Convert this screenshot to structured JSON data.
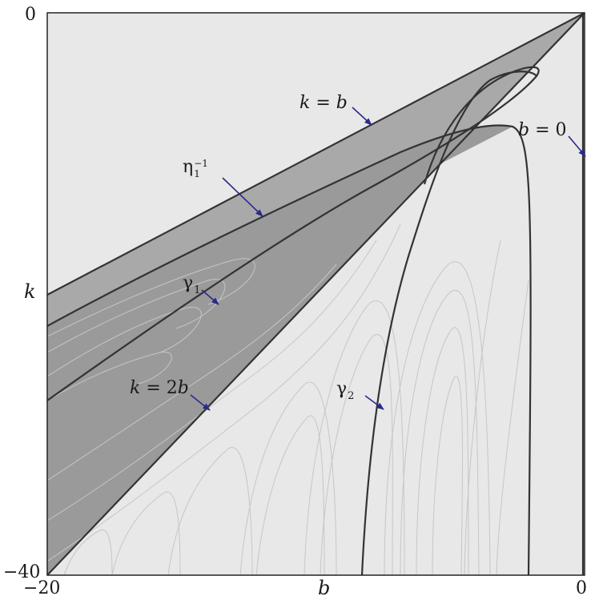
{
  "axes": {
    "xlabel": "b",
    "ylabel": "k",
    "xlim": [
      -20,
      0
    ],
    "ylim": [
      -40,
      0
    ],
    "xticks": [
      "−20",
      "0"
    ],
    "yticks": [
      "0",
      "−40"
    ]
  },
  "annotations": {
    "k_eq_b": {
      "lhs": "k",
      "op": "=",
      "rhs": "b"
    },
    "b_eq_0": {
      "lhs": "b",
      "op": "=",
      "rhs": "0"
    },
    "k_eq_2b": {
      "lhs": "k",
      "op": "=",
      "rhs": "2b"
    },
    "eta": {
      "symbol": "η",
      "sub": "1",
      "sup": "−1"
    },
    "gamma1": {
      "symbol": "γ",
      "sub": "1"
    },
    "gamma2": {
      "symbol": "γ",
      "sub": "2"
    }
  },
  "colors": {
    "background_region": "#e8e8e8",
    "wedge_light": "#a9a9a9",
    "wedge_dark": "#999999",
    "curve": "#333333",
    "arrow": "#2a2a8a",
    "fine_curves": "#c6c6c6"
  }
}
